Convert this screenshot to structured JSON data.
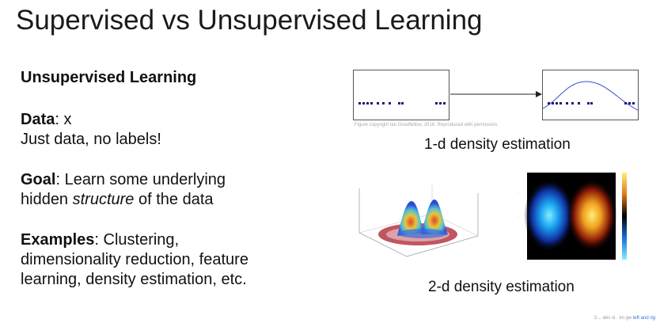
{
  "slide": {
    "title": "Supervised vs Unsupervised Learning",
    "subheading": "Unsupervised Learning",
    "data_label": "Data",
    "data_value": ": x",
    "data_note": "Just data, no labels!",
    "goal_label": "Goal",
    "goal_text_1": ": Learn some underlying",
    "goal_text_2a": "hidden ",
    "goal_text_2b": "structure",
    "goal_text_2c": " of the data",
    "examples_label": "Examples",
    "examples_text_1": ": Clustering,",
    "examples_text_2": "dimensionality reduction, feature",
    "examples_text_3": "learning, density estimation, etc."
  },
  "figures": {
    "credit": "Figure copyright Ian Goodfellow, 2016. Reproduced with permission.",
    "caption_1d": "1-d density estimation",
    "caption_2d": "2-d density estimation",
    "point_color": "#1c1c7a",
    "curve_color": "#3a4fd0"
  },
  "footer": {
    "text": "3→ dev sl · im gw",
    "link_text": "left and rig"
  }
}
